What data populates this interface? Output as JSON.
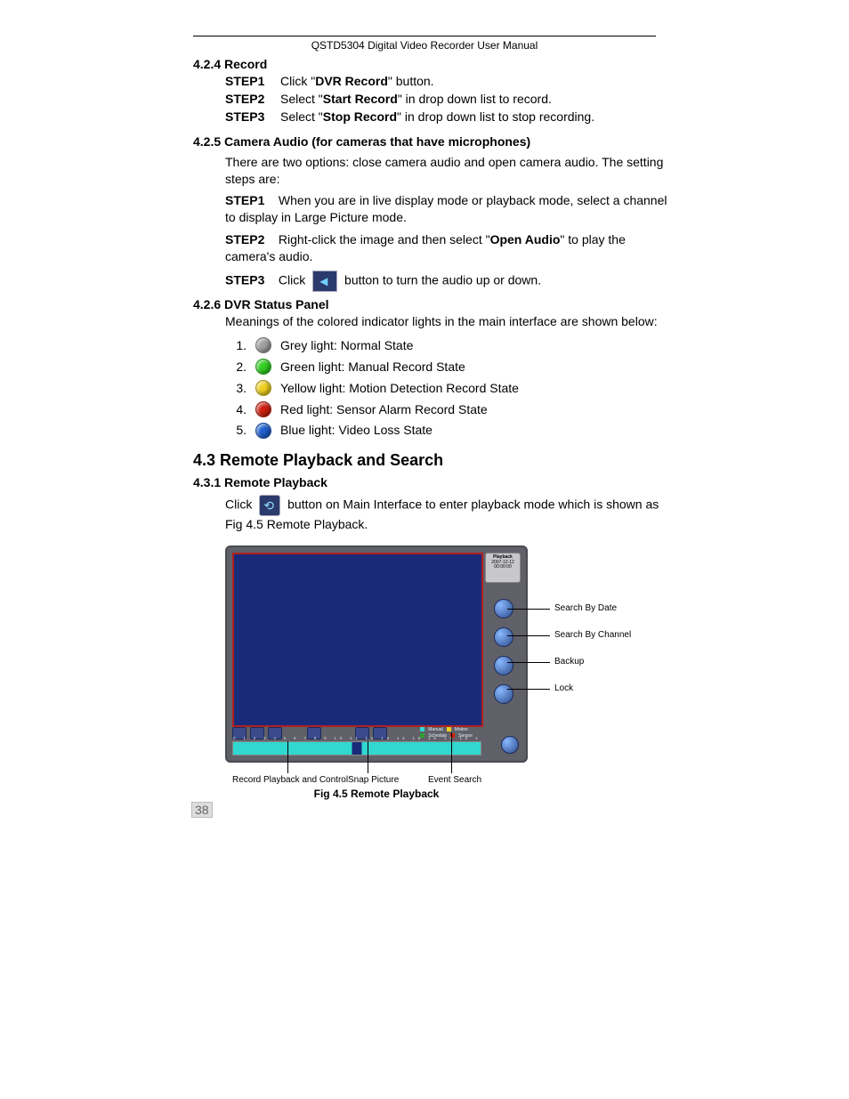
{
  "header": "QSTD5304 Digital Video Recorder User Manual",
  "s424": {
    "title": "4.2.4  Record",
    "step1_l": "STEP1",
    "step1_a": "Click \"",
    "step1_b": "DVR Record",
    "step1_c": "\" button.",
    "step2_l": "STEP2",
    "step2_a": "Select \"",
    "step2_b": "Start Record",
    "step2_c": "\" in drop down list to record.",
    "step3_l": "STEP3",
    "step3_a": "Select \"",
    "step3_b": "Stop Record",
    "step3_c": "\" in drop down list to stop recording."
  },
  "s425": {
    "title": "4.2.5 Camera Audio (for cameras that have microphones)",
    "intro": "There are two options: close camera audio and open camera audio. The setting steps are:",
    "step1_l": "STEP1",
    "step1_t": "When you are in live display mode or playback mode, select a channel to display in Large Picture mode.",
    "step2_l": "STEP2",
    "step2_a": "Right-click the image and then select \"",
    "step2_b": "Open Audio",
    "step2_c": "\" to play the camera's audio.",
    "step3_l": "STEP3",
    "step3_a": "Click",
    "step3_c": "button to turn the audio up or down."
  },
  "s426": {
    "title": "4.2.6 DVR Status Panel",
    "intro": "Meanings of the colored indicator lights in the main interface are shown below:",
    "rows": [
      {
        "n": "1.",
        "color": "#a0a0a0",
        "text": "Grey light: Normal State"
      },
      {
        "n": "2.",
        "color": "#30d020",
        "text": "Green light: Manual Record State"
      },
      {
        "n": "3.",
        "color": "#f0d020",
        "text": "Yellow light: Motion Detection Record State"
      },
      {
        "n": "4.",
        "color": "#d02010",
        "text": "Red light: Sensor Alarm Record State"
      },
      {
        "n": "5.",
        "color": "#2060d0",
        "text": "Blue light: Video Loss State"
      }
    ]
  },
  "s43": {
    "title": "4.3  Remote Playback and Search"
  },
  "s431": {
    "title": "4.3.1  Remote Playback",
    "a": "Click",
    "c": "button on Main Interface to enter playback mode which is shown as Fig 4.5 Remote Playback."
  },
  "fig": {
    "panel": {
      "t1": "Playback",
      "t2": "2007-12-12",
      "t3": "00:00:00"
    },
    "side_labels": [
      "Search By Date",
      "Search By Channel",
      "Backup",
      "Lock"
    ],
    "bottom_labels": [
      "Record Playback and Control",
      "Snap Picture",
      "Event Search"
    ],
    "legend": [
      {
        "c": "#30d8d0",
        "t": "Manual"
      },
      {
        "c": "#f0d020",
        "t": "Motion"
      },
      {
        "c": "#30a030",
        "t": "Schedule"
      },
      {
        "c": "#d02010",
        "t": "Sensor"
      }
    ],
    "timeline_ticks": "0 1 2 3 4 5 6 7 8 9 10 11 12 13 14 15 16 17 18 19 20 21 22 23",
    "caption": "Fig 4.5 Remote Playback"
  },
  "pagenum": "38"
}
